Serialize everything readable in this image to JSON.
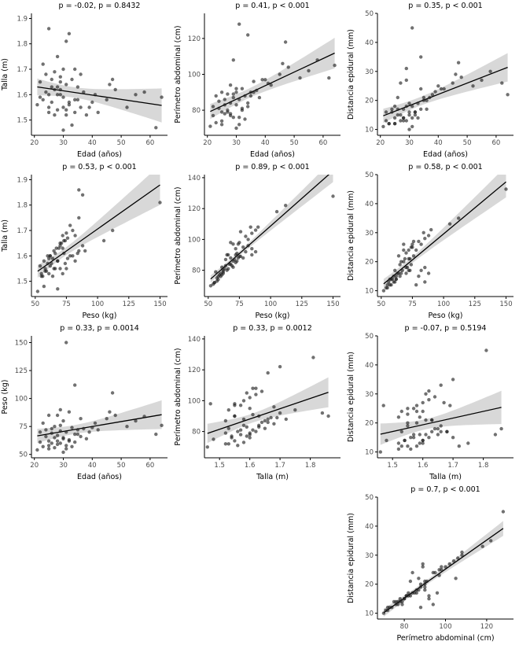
{
  "figure": {
    "background": "#ffffff",
    "point_color": "#1a1a1a",
    "point_opacity": 0.62,
    "point_radius": 2.2,
    "line_color": "#000000",
    "band_color": "#999999",
    "band_opacity": 0.38,
    "axis_color": "#000000",
    "tick_text_color": "#4d4d4d",
    "label_text_color": "#000000"
  },
  "chart_data": {
    "type": "scatter",
    "variables": [
      "edad",
      "talla",
      "peso",
      "perimetro",
      "distancia"
    ],
    "variable_labels": {
      "edad": "Edad (años)",
      "talla": "Talla (m)",
      "peso": "Peso (kg)",
      "perimetro": "Perímetro abdominal (cm)",
      "distancia": "Distancia epidural (mm)"
    },
    "subjects": [
      [
        25,
        1.55,
        58,
        74,
        12
      ],
      [
        28,
        1.6,
        62,
        78,
        14
      ],
      [
        31,
        1.52,
        55,
        72,
        11
      ],
      [
        22,
        1.65,
        70,
        82,
        16
      ],
      [
        34,
        1.58,
        68,
        84,
        24
      ],
      [
        27,
        1.62,
        65,
        80,
        15
      ],
      [
        30,
        1.46,
        52,
        70,
        10
      ],
      [
        24,
        1.68,
        72,
        85,
        17
      ],
      [
        36,
        1.55,
        66,
        90,
        20
      ],
      [
        29,
        1.6,
        60,
        76,
        13
      ],
      [
        32,
        1.57,
        63,
        81,
        16
      ],
      [
        26,
        1.63,
        69,
        83,
        21
      ],
      [
        38,
        1.52,
        64,
        87,
        22
      ],
      [
        23,
        1.58,
        57,
        73,
        12
      ],
      [
        33,
        1.66,
        74,
        88,
        19
      ],
      [
        28,
        1.54,
        59,
        77,
        14
      ],
      [
        41,
        1.6,
        78,
        95,
        24
      ],
      [
        35,
        1.63,
        72,
        90,
        21
      ],
      [
        21,
        1.56,
        54,
        71,
        11
      ],
      [
        30,
        1.7,
        80,
        92,
        15
      ],
      [
        27,
        1.52,
        56,
        79,
        13
      ],
      [
        45,
        1.58,
        82,
        100,
        26
      ],
      [
        31,
        1.64,
        70,
        86,
        18
      ],
      [
        25,
        1.6,
        62,
        79,
        14
      ],
      [
        52,
        1.55,
        75,
        98,
        25
      ],
      [
        29,
        1.67,
        76,
        89,
        27
      ],
      [
        34,
        1.53,
        61,
        82,
        17
      ],
      [
        37,
        1.61,
        73,
        91,
        21
      ],
      [
        26,
        1.57,
        60,
        78,
        15
      ],
      [
        48,
        1.62,
        85,
        104,
        28
      ],
      [
        30,
        1.59,
        64,
        83,
        16
      ],
      [
        23,
        1.72,
        78,
        88,
        12
      ],
      [
        39,
        1.55,
        70,
        97,
        23
      ],
      [
        28,
        1.63,
        67,
        84,
        17
      ],
      [
        55,
        1.6,
        80,
        102,
        27
      ],
      [
        32,
        1.56,
        62,
        80,
        15
      ],
      [
        24,
        1.61,
        66,
        81,
        16
      ],
      [
        42,
        1.53,
        72,
        94,
        24
      ],
      [
        29,
        1.65,
        71,
        87,
        18
      ],
      [
        35,
        1.58,
        68,
        88,
        20
      ],
      [
        62,
        1.47,
        68,
        98,
        26
      ],
      [
        27,
        1.69,
        75,
        89,
        26
      ],
      [
        31,
        1.54,
        58,
        76,
        14
      ],
      [
        22,
        1.59,
        61,
        77,
        13
      ],
      [
        46,
        1.64,
        88,
        106,
        29
      ],
      [
        33,
        1.48,
        57,
        75,
        14
      ],
      [
        26,
        1.66,
        73,
        86,
        17
      ],
      [
        58,
        1.61,
        84,
        108,
        30
      ],
      [
        30,
        1.55,
        65,
        90,
        19
      ],
      [
        36,
        1.68,
        82,
        96,
        17
      ],
      [
        25,
        1.53,
        55,
        72,
        12
      ],
      [
        64,
        1.59,
        76,
        105,
        22
      ],
      [
        28,
        1.75,
        85,
        94,
        13
      ],
      [
        40,
        1.57,
        74,
        97,
        25
      ],
      [
        25,
        1.86,
        85,
        90,
        18
      ],
      [
        32,
        1.84,
        88,
        92,
        16
      ],
      [
        29,
        1.62,
        90,
        108,
        31
      ],
      [
        47,
        1.66,
        105,
        118,
        33
      ],
      [
        34,
        1.7,
        112,
        122,
        35
      ],
      [
        31,
        1.81,
        150,
        128,
        45
      ]
    ],
    "plots": [
      {
        "id": "talla-vs-edad",
        "title": "p = -0.02, p = 0.8432",
        "x": "edad",
        "y": "talla",
        "xlabel": "Edad (años)",
        "ylabel": "Talla (m)",
        "xlim": [
          19,
          66
        ],
        "ylim": [
          1.44,
          1.92
        ],
        "xticks": [
          20,
          30,
          40,
          50,
          60
        ],
        "yticks": [
          1.5,
          1.6,
          1.7,
          1.8,
          1.9
        ],
        "row": 1,
        "col": 1
      },
      {
        "id": "perimetro-vs-edad",
        "title": "p = 0.41, p < 0.001",
        "x": "edad",
        "y": "perimetro",
        "xlabel": "Edad (años)",
        "ylabel": "Perímetro abdominal (cm)",
        "xlim": [
          19,
          66
        ],
        "ylim": [
          66,
          134
        ],
        "xticks": [
          20,
          30,
          40,
          50,
          60
        ],
        "yticks": [
          80,
          100,
          120
        ],
        "row": 1,
        "col": 2
      },
      {
        "id": "distancia-vs-edad",
        "title": "p = 0.35, p < 0.001",
        "x": "edad",
        "y": "distancia",
        "xlabel": "Edad (años)",
        "ylabel": "Distancia epidural (mm)",
        "xlim": [
          19,
          66
        ],
        "ylim": [
          8,
          50
        ],
        "xticks": [
          20,
          30,
          40,
          50,
          60
        ],
        "yticks": [
          10,
          20,
          30,
          40,
          50
        ],
        "row": 1,
        "col": 3
      },
      {
        "id": "talla-vs-peso",
        "title": "p = 0.53, p < 0.001",
        "x": "peso",
        "y": "talla",
        "xlabel": "Peso (kg)",
        "ylabel": "Talla (m)",
        "xlim": [
          47,
          156
        ],
        "ylim": [
          1.44,
          1.92
        ],
        "xticks": [
          50,
          75,
          100,
          125,
          150
        ],
        "yticks": [
          1.5,
          1.6,
          1.7,
          1.8,
          1.9
        ],
        "row": 2,
        "col": 1
      },
      {
        "id": "perimetro-vs-peso",
        "title": "p = 0.89, p < 0.001",
        "x": "peso",
        "y": "perimetro",
        "xlabel": "Peso (kg)",
        "ylabel": "Perímetro abdominal (cm)",
        "xlim": [
          47,
          156
        ],
        "ylim": [
          63,
          142
        ],
        "xticks": [
          50,
          75,
          100,
          125,
          150
        ],
        "yticks": [
          80,
          100,
          120,
          140
        ],
        "row": 2,
        "col": 2
      },
      {
        "id": "distancia-vs-peso",
        "title": "p = 0.58, p < 0.001",
        "x": "peso",
        "y": "distancia",
        "xlabel": "Peso (kg)",
        "ylabel": "Distancia epidural (mm)",
        "xlim": [
          47,
          156
        ],
        "ylim": [
          8,
          50
        ],
        "xticks": [
          50,
          75,
          100,
          125,
          150
        ],
        "yticks": [
          10,
          20,
          30,
          40,
          50
        ],
        "row": 2,
        "col": 3
      },
      {
        "id": "peso-vs-edad",
        "title": "p = 0.33, p = 0.0014",
        "x": "edad",
        "y": "peso",
        "xlabel": "Edad (años)",
        "ylabel": "Peso (kg)",
        "xlim": [
          19,
          66
        ],
        "ylim": [
          47,
          156
        ],
        "xticks": [
          20,
          30,
          40,
          50,
          60
        ],
        "yticks": [
          50,
          75,
          100,
          125,
          150
        ],
        "row": 3,
        "col": 1
      },
      {
        "id": "perimetro-vs-talla",
        "title": "p = 0.33, p = 0.0012",
        "x": "talla",
        "y": "perimetro",
        "xlabel": "Talla (m)",
        "ylabel": "Perímetro abdominal (cm)",
        "xlim": [
          1.45,
          1.9
        ],
        "ylim": [
          63,
          142
        ],
        "xticks": [
          1.5,
          1.6,
          1.7,
          1.8
        ],
        "yticks": [
          80,
          100,
          120,
          140
        ],
        "row": 3,
        "col": 2
      },
      {
        "id": "distancia-vs-talla",
        "title": "p = -0.07, p = 0.5194",
        "x": "talla",
        "y": "distancia",
        "xlabel": "Talla (m)",
        "ylabel": "Distancia epidural (mm)",
        "xlim": [
          1.45,
          1.9
        ],
        "ylim": [
          8,
          50
        ],
        "xticks": [
          1.5,
          1.6,
          1.7,
          1.8
        ],
        "yticks": [
          10,
          20,
          30,
          40,
          50
        ],
        "row": 3,
        "col": 3
      },
      {
        "id": "distancia-vs-perimetro",
        "title": "p = 0.7, p < 0.001",
        "x": "perimetro",
        "y": "distancia",
        "xlabel": "Perímetro abdominal (cm)",
        "ylabel": "Distancia epidural (mm)",
        "xlim": [
          67,
          133
        ],
        "ylim": [
          8,
          50
        ],
        "xticks": [
          80,
          100,
          120
        ],
        "yticks": [
          10,
          20,
          30,
          40,
          50
        ],
        "row": 4,
        "col": 3
      }
    ]
  }
}
